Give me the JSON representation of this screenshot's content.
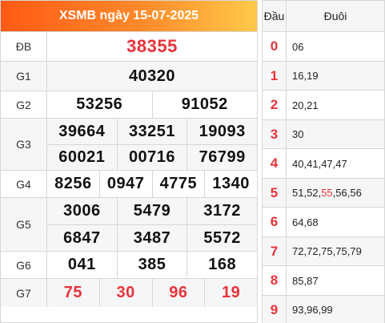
{
  "header": {
    "title": "XSMB ngày 15-07-2025"
  },
  "prizes": {
    "db": {
      "label": "ĐB",
      "numbers": [
        "38355"
      ]
    },
    "g1": {
      "label": "G1",
      "numbers": [
        "40320"
      ]
    },
    "g2": {
      "label": "G2",
      "numbers": [
        "53256",
        "91052"
      ]
    },
    "g3": {
      "label": "G3",
      "numbers": [
        "39664",
        "33251",
        "19093",
        "60021",
        "00716",
        "76799"
      ]
    },
    "g4": {
      "label": "G4",
      "numbers": [
        "8256",
        "0947",
        "4775",
        "1340"
      ]
    },
    "g5": {
      "label": "G5",
      "numbers": [
        "3006",
        "5479",
        "3172",
        "6847",
        "3487",
        "5572"
      ]
    },
    "g6": {
      "label": "G6",
      "numbers": [
        "041",
        "385",
        "168"
      ]
    },
    "g7": {
      "label": "G7",
      "numbers": [
        "75",
        "30",
        "96",
        "19"
      ]
    }
  },
  "loto": {
    "header_dau": "Đầu",
    "header_duoi": "Đuôi",
    "rows": [
      {
        "dau": "0",
        "duoi": [
          "06"
        ]
      },
      {
        "dau": "1",
        "duoi": [
          "16",
          "19"
        ]
      },
      {
        "dau": "2",
        "duoi": [
          "20",
          "21"
        ]
      },
      {
        "dau": "3",
        "duoi": [
          "30"
        ]
      },
      {
        "dau": "4",
        "duoi": [
          "40",
          "41",
          "47",
          "47"
        ]
      },
      {
        "dau": "5",
        "duoi": [
          "51",
          "52",
          "55",
          "56",
          "56"
        ],
        "highlight_index": 2
      },
      {
        "dau": "6",
        "duoi": [
          "64",
          "68"
        ]
      },
      {
        "dau": "7",
        "duoi": [
          "72",
          "72",
          "75",
          "75",
          "79"
        ]
      },
      {
        "dau": "8",
        "duoi": [
          "85",
          "87"
        ]
      },
      {
        "dau": "9",
        "duoi": [
          "93",
          "96",
          "99"
        ]
      }
    ]
  },
  "colors": {
    "accent_red": "#e8333a",
    "header_orange": "#ff5a14",
    "header_yellow": "#ffc94a"
  }
}
